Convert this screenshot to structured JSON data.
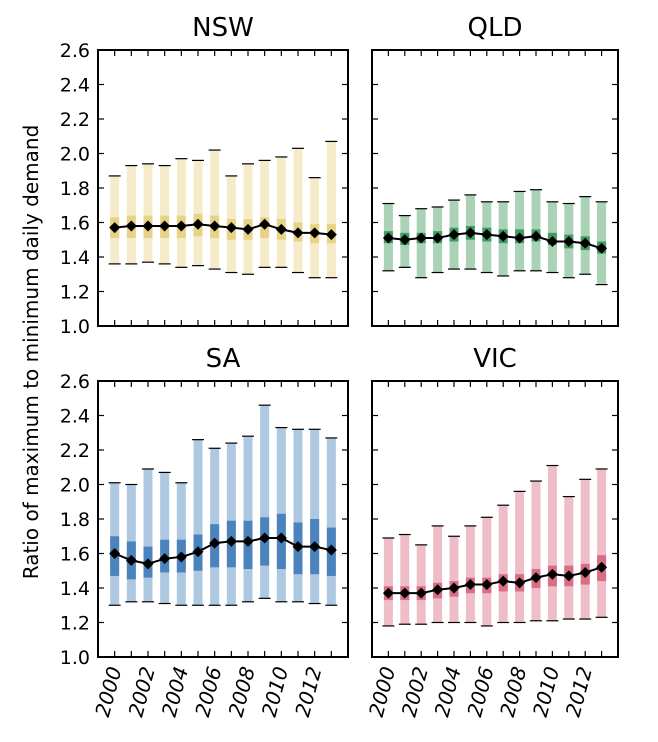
{
  "ylabel": "Ratio of maximum to minimum daily demand",
  "chart_data": [
    {
      "type": "box",
      "title": "NSW",
      "color": "#e8d285",
      "x": [
        2000,
        2001,
        2002,
        2003,
        2004,
        2005,
        2006,
        2007,
        2008,
        2009,
        2010,
        2011,
        2012,
        2013
      ],
      "ylim": [
        1.0,
        2.6
      ],
      "yticks": [
        "1.0",
        "1.2",
        "1.4",
        "1.6",
        "1.8",
        "2.0",
        "2.2",
        "2.4",
        "2.6"
      ],
      "xticks": [
        "2000",
        "2002",
        "2004",
        "2006",
        "2008",
        "2010",
        "2012"
      ],
      "min": [
        1.36,
        1.36,
        1.37,
        1.36,
        1.34,
        1.35,
        1.33,
        1.31,
        1.3,
        1.34,
        1.34,
        1.31,
        1.28,
        1.28
      ],
      "q1": [
        1.51,
        1.51,
        1.51,
        1.51,
        1.51,
        1.52,
        1.51,
        1.5,
        1.5,
        1.51,
        1.5,
        1.49,
        1.48,
        1.48
      ],
      "median": [
        1.57,
        1.58,
        1.58,
        1.58,
        1.58,
        1.59,
        1.58,
        1.57,
        1.56,
        1.59,
        1.56,
        1.54,
        1.54,
        1.53
      ],
      "q3": [
        1.63,
        1.64,
        1.64,
        1.64,
        1.64,
        1.65,
        1.64,
        1.62,
        1.62,
        1.63,
        1.62,
        1.6,
        1.59,
        1.59
      ],
      "max": [
        1.87,
        1.93,
        1.94,
        1.93,
        1.97,
        1.96,
        2.02,
        1.87,
        1.94,
        1.96,
        1.98,
        2.03,
        1.86,
        2.07
      ]
    },
    {
      "type": "box",
      "title": "QLD",
      "color": "#3f9c5e",
      "x": [
        2000,
        2001,
        2002,
        2003,
        2004,
        2005,
        2006,
        2007,
        2008,
        2009,
        2010,
        2011,
        2012,
        2013
      ],
      "ylim": [
        1.0,
        2.6
      ],
      "yticks": [],
      "xticks": [
        "2000",
        "2002",
        "2004",
        "2006",
        "2008",
        "2010",
        "2012"
      ],
      "min": [
        1.32,
        1.34,
        1.28,
        1.31,
        1.33,
        1.33,
        1.31,
        1.29,
        1.32,
        1.32,
        1.31,
        1.28,
        1.3,
        1.24
      ],
      "q1": [
        1.48,
        1.47,
        1.48,
        1.48,
        1.49,
        1.5,
        1.49,
        1.48,
        1.48,
        1.49,
        1.47,
        1.45,
        1.44,
        1.42
      ],
      "median": [
        1.51,
        1.5,
        1.51,
        1.51,
        1.53,
        1.54,
        1.53,
        1.52,
        1.51,
        1.52,
        1.49,
        1.49,
        1.48,
        1.45
      ],
      "q3": [
        1.55,
        1.54,
        1.54,
        1.55,
        1.57,
        1.58,
        1.57,
        1.56,
        1.56,
        1.56,
        1.54,
        1.53,
        1.52,
        1.49
      ],
      "max": [
        1.71,
        1.64,
        1.68,
        1.69,
        1.73,
        1.76,
        1.72,
        1.72,
        1.78,
        1.79,
        1.72,
        1.71,
        1.75,
        1.72
      ]
    },
    {
      "type": "box",
      "title": "SA",
      "color": "#4b84bd",
      "x": [
        2000,
        2001,
        2002,
        2003,
        2004,
        2005,
        2006,
        2007,
        2008,
        2009,
        2010,
        2011,
        2012,
        2013
      ],
      "ylim": [
        1.0,
        2.6
      ],
      "yticks": [
        "1.0",
        "1.2",
        "1.4",
        "1.6",
        "1.8",
        "2.0",
        "2.2",
        "2.4",
        "2.6"
      ],
      "xticks": [
        "2000",
        "2002",
        "2004",
        "2006",
        "2008",
        "2010",
        "2012"
      ],
      "min": [
        1.3,
        1.32,
        1.32,
        1.31,
        1.3,
        1.3,
        1.3,
        1.3,
        1.32,
        1.34,
        1.32,
        1.32,
        1.31,
        1.3
      ],
      "q1": [
        1.47,
        1.45,
        1.46,
        1.49,
        1.49,
        1.5,
        1.52,
        1.52,
        1.51,
        1.53,
        1.51,
        1.48,
        1.48,
        1.47
      ],
      "median": [
        1.6,
        1.56,
        1.54,
        1.57,
        1.58,
        1.61,
        1.66,
        1.67,
        1.67,
        1.69,
        1.69,
        1.64,
        1.64,
        1.62
      ],
      "q3": [
        1.7,
        1.67,
        1.64,
        1.68,
        1.68,
        1.71,
        1.77,
        1.79,
        1.79,
        1.81,
        1.83,
        1.78,
        1.8,
        1.75
      ],
      "max": [
        2.01,
        2.0,
        2.09,
        2.07,
        2.01,
        2.26,
        2.21,
        2.24,
        2.28,
        2.46,
        2.33,
        2.32,
        2.32,
        2.27
      ]
    },
    {
      "type": "box",
      "title": "VIC",
      "color": "#d96d82",
      "x": [
        2000,
        2001,
        2002,
        2003,
        2004,
        2005,
        2006,
        2007,
        2008,
        2009,
        2010,
        2011,
        2012,
        2013
      ],
      "ylim": [
        1.0,
        2.6
      ],
      "yticks": [],
      "xticks": [
        "2000",
        "2002",
        "2004",
        "2006",
        "2008",
        "2010",
        "2012"
      ],
      "min": [
        1.18,
        1.19,
        1.19,
        1.2,
        1.2,
        1.2,
        1.18,
        1.2,
        1.2,
        1.21,
        1.21,
        1.22,
        1.22,
        1.23
      ],
      "q1": [
        1.33,
        1.33,
        1.33,
        1.34,
        1.35,
        1.37,
        1.37,
        1.38,
        1.38,
        1.4,
        1.41,
        1.41,
        1.42,
        1.44
      ],
      "median": [
        1.37,
        1.37,
        1.37,
        1.39,
        1.4,
        1.42,
        1.42,
        1.44,
        1.43,
        1.46,
        1.48,
        1.47,
        1.49,
        1.52
      ],
      "q3": [
        1.41,
        1.41,
        1.41,
        1.43,
        1.44,
        1.46,
        1.46,
        1.48,
        1.48,
        1.51,
        1.53,
        1.53,
        1.54,
        1.59
      ],
      "max": [
        1.69,
        1.71,
        1.65,
        1.76,
        1.7,
        1.76,
        1.81,
        1.88,
        1.96,
        2.02,
        2.11,
        1.93,
        2.03,
        2.09
      ]
    }
  ]
}
